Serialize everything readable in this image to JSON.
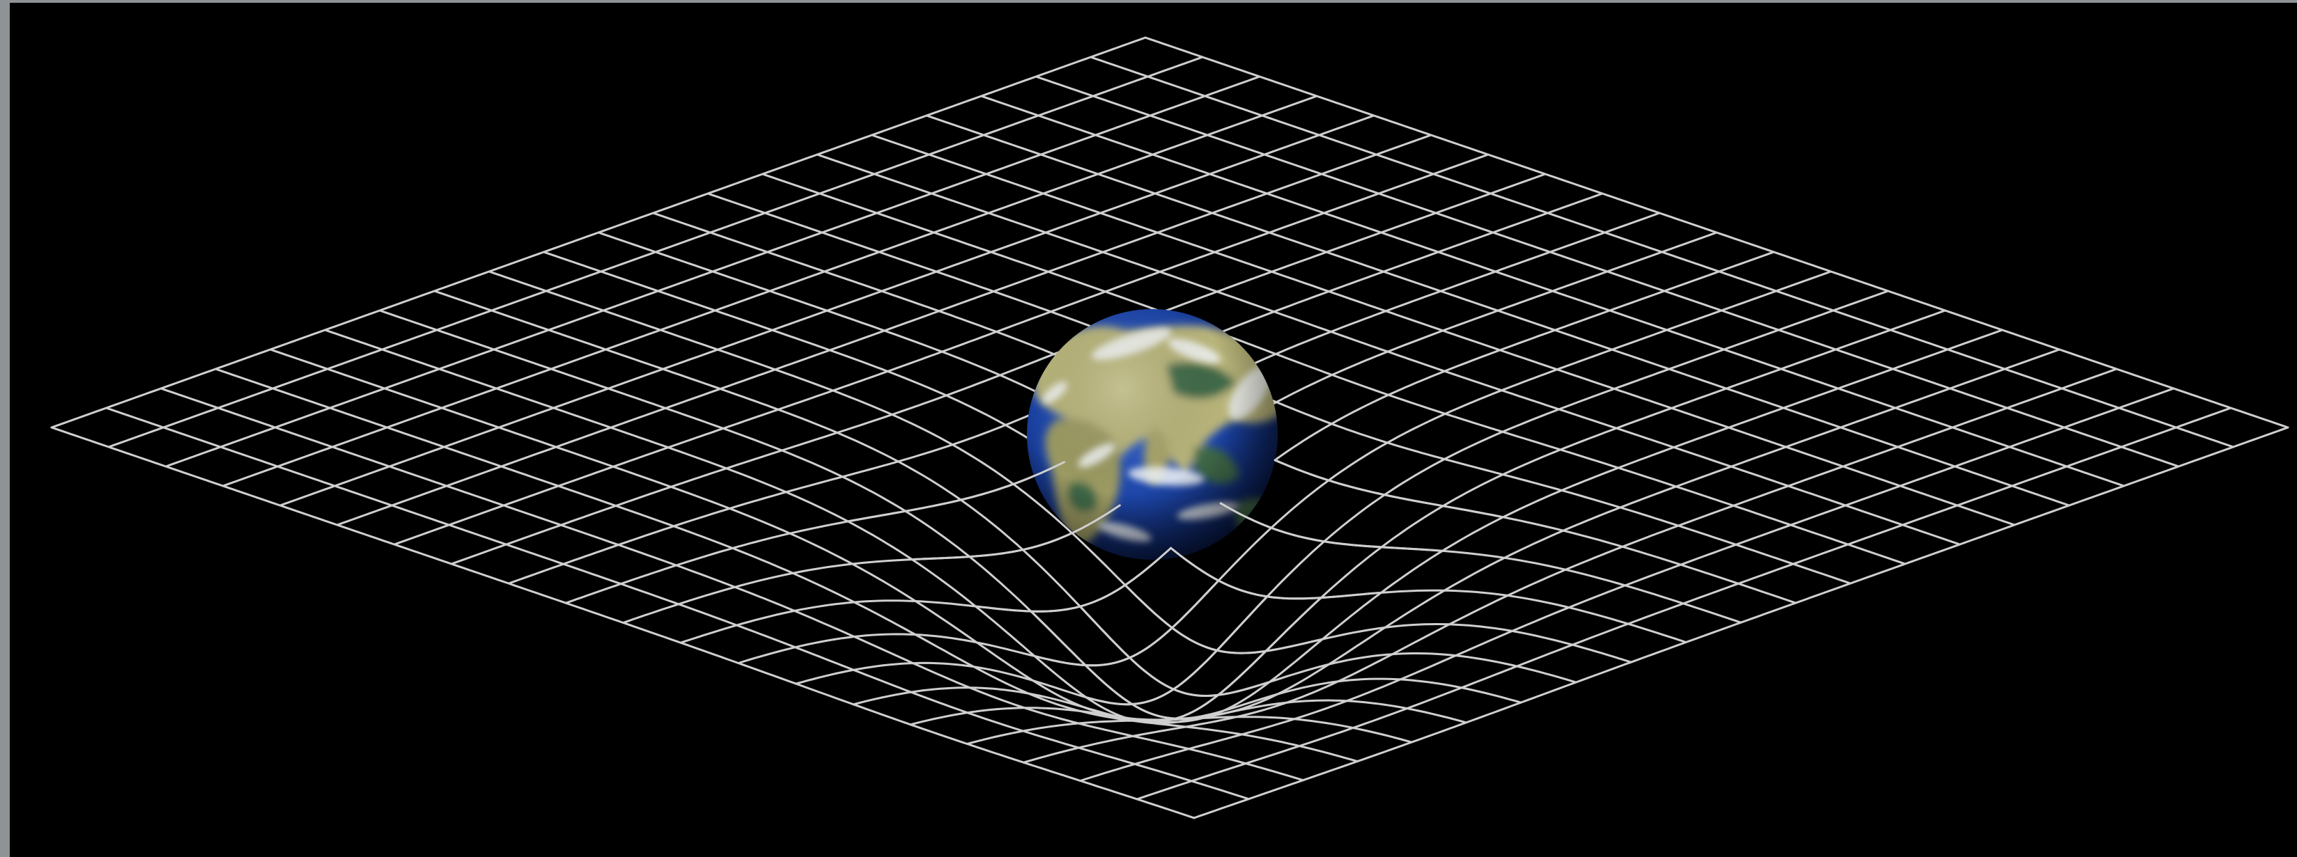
{
  "diagram": {
    "subject": "spacetime-curvature",
    "background_color": "#000000",
    "frame_color": "#8e9396",
    "grid": {
      "lines_per_direction": 20,
      "line_color": "#cfcfcf"
    },
    "planet": {
      "name": "earth",
      "ocean_color": "#1c44a6",
      "land_color": "#b8b47a",
      "vegetation_color": "#3f6a4a",
      "cloud_color": "#f2f5f7"
    }
  }
}
